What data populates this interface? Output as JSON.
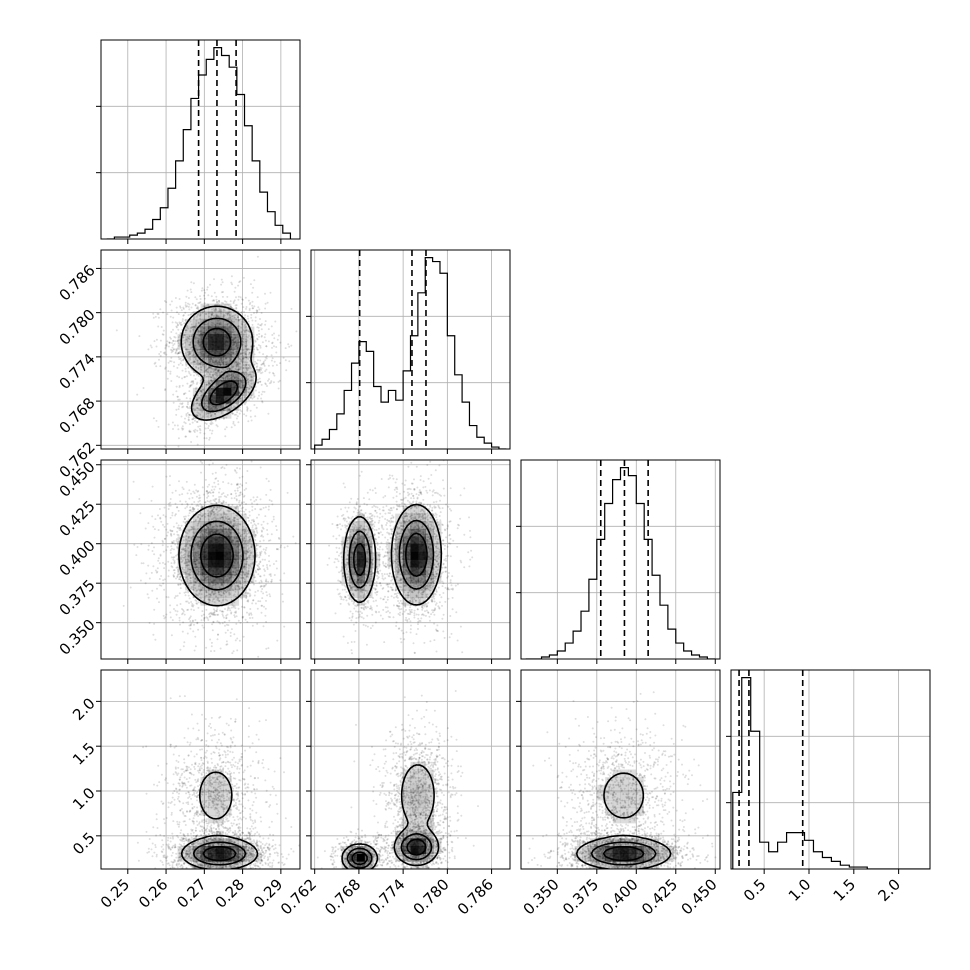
{
  "chart_data": {
    "type": "scatter",
    "title": "",
    "layout": "corner",
    "parameters": [
      {
        "name": "",
        "range": [
          0.243,
          0.295
        ],
        "ticks": [
          0.25,
          0.26,
          0.27,
          0.28,
          0.29
        ]
      },
      {
        "name": "",
        "range": [
          0.7615,
          0.7885
        ],
        "ticks": [
          0.762,
          0.768,
          0.774,
          0.78,
          0.786
        ]
      },
      {
        "name": "",
        "range": [
          0.327,
          0.453
        ],
        "ticks": [
          0.35,
          0.375,
          0.4,
          0.425,
          0.45
        ]
      },
      {
        "name": "",
        "range": [
          0.13,
          2.35
        ],
        "ticks": [
          0.5,
          1.0,
          1.5,
          2.0
        ]
      }
    ],
    "tick_labels": {
      "p0": [
        "0.25",
        "0.26",
        "0.27",
        "0.28",
        "0.29"
      ],
      "p1": [
        "0.762",
        "0.768",
        "0.774",
        "0.780",
        "0.786"
      ],
      "p2": [
        "0.350",
        "0.375",
        "0.400",
        "0.425",
        "0.450"
      ],
      "p3": [
        "0.5",
        "1.0",
        "1.5",
        "2.0"
      ]
    },
    "grid": true,
    "histograms": [
      {
        "param": 0,
        "quantiles": [
          0.2685,
          0.2733,
          0.2783
        ],
        "bin_edges": [
          0.2445,
          0.2465,
          0.2485,
          0.2505,
          0.2525,
          0.2545,
          0.2565,
          0.2585,
          0.2605,
          0.2625,
          0.2645,
          0.2665,
          0.2685,
          0.2705,
          0.2725,
          0.2745,
          0.2765,
          0.2785,
          0.2805,
          0.2825,
          0.2845,
          0.2865,
          0.2885,
          0.2905,
          0.2925
        ],
        "counts": [
          0,
          1,
          1,
          2,
          3,
          5,
          10,
          16,
          26,
          40,
          56,
          72,
          84,
          92,
          98,
          94,
          88,
          74,
          58,
          40,
          24,
          14,
          7,
          3
        ]
      },
      {
        "param": 1,
        "quantiles": [
          0.7681,
          0.7752,
          0.7771
        ],
        "bin_edges": [
          0.762,
          0.763,
          0.764,
          0.765,
          0.766,
          0.767,
          0.768,
          0.769,
          0.77,
          0.771,
          0.772,
          0.773,
          0.774,
          0.775,
          0.776,
          0.777,
          0.778,
          0.779,
          0.78,
          0.781,
          0.782,
          0.783,
          0.784,
          0.785,
          0.786,
          0.787,
          0.788
        ],
        "counts": [
          2,
          5,
          10,
          18,
          30,
          44,
          55,
          50,
          32,
          24,
          30,
          25,
          40,
          58,
          80,
          98,
          96,
          90,
          58,
          38,
          24,
          12,
          6,
          3,
          1,
          0
        ]
      },
      {
        "param": 2,
        "quantiles": [
          0.3775,
          0.3925,
          0.4075
        ],
        "bin_edges": [
          0.33,
          0.335,
          0.34,
          0.345,
          0.35,
          0.355,
          0.36,
          0.365,
          0.37,
          0.375,
          0.38,
          0.385,
          0.39,
          0.395,
          0.4,
          0.405,
          0.41,
          0.415,
          0.42,
          0.425,
          0.43,
          0.435,
          0.44,
          0.445,
          0.45
        ],
        "counts": [
          0,
          0,
          1,
          2,
          4,
          8,
          14,
          24,
          40,
          60,
          78,
          90,
          96,
          92,
          78,
          60,
          42,
          27,
          15,
          8,
          4,
          2,
          1,
          0
        ]
      },
      {
        "param": 3,
        "quantiles": [
          0.22,
          0.33,
          0.93
        ],
        "bin_edges": [
          0.15,
          0.25,
          0.35,
          0.45,
          0.55,
          0.65,
          0.75,
          0.85,
          0.95,
          1.05,
          1.15,
          1.25,
          1.35,
          1.45,
          1.55,
          1.65,
          1.75,
          1.85,
          1.95,
          2.05,
          2.15,
          2.25,
          2.35
        ],
        "counts": [
          40,
          100,
          72,
          14,
          9,
          14,
          19,
          19,
          15,
          9,
          6,
          4,
          2,
          1,
          1,
          0,
          0,
          0,
          0,
          0,
          0,
          0
        ]
      }
    ],
    "pair_panels": [
      {
        "x_param": 0,
        "y_param": 1,
        "clusters": [
          {
            "center": [
              0.2733,
              0.776
            ],
            "sd": [
              0.0048,
              0.0025
            ],
            "weight": 0.64
          },
          {
            "center": [
              0.275,
              0.769
            ],
            "sd": [
              0.0042,
              0.0018
            ],
            "rho": 0.55,
            "weight": 0.36
          }
        ],
        "contour_levels": 3
      },
      {
        "x_param": 0,
        "y_param": 2,
        "clusters": [
          {
            "center": [
              0.2733,
              0.3925
            ],
            "sd": [
              0.005,
              0.016
            ],
            "weight": 1.0
          }
        ],
        "contour_levels": 3
      },
      {
        "x_param": 1,
        "y_param": 2,
        "clusters": [
          {
            "center": [
              0.7681,
              0.39
            ],
            "sd": [
              0.0011,
              0.014
            ],
            "weight": 0.34
          },
          {
            "center": [
              0.7758,
              0.393
            ],
            "sd": [
              0.0017,
              0.016
            ],
            "weight": 0.66
          }
        ],
        "contour_levels": 3
      },
      {
        "x_param": 0,
        "y_param": 3,
        "clusters": [
          {
            "center": [
              0.274,
              0.3
            ],
            "sd": [
              0.005,
              0.09
            ],
            "weight": 0.62
          },
          {
            "center": [
              0.273,
              0.95
            ],
            "sd": [
              0.0045,
              0.28
            ],
            "weight": 0.38
          }
        ],
        "contour_levels": 3
      },
      {
        "x_param": 1,
        "y_param": 3,
        "clusters": [
          {
            "center": [
              0.7681,
              0.25
            ],
            "sd": [
              0.0012,
              0.08
            ],
            "weight": 0.25
          },
          {
            "center": [
              0.7758,
              0.37
            ],
            "sd": [
              0.0015,
              0.1
            ],
            "weight": 0.37
          },
          {
            "center": [
              0.776,
              0.95
            ],
            "sd": [
              0.0018,
              0.28
            ],
            "weight": 0.38
          }
        ],
        "contour_levels": 3
      },
      {
        "x_param": 2,
        "y_param": 3,
        "clusters": [
          {
            "center": [
              0.392,
              0.3
            ],
            "sd": [
              0.015,
              0.09
            ],
            "weight": 0.62
          },
          {
            "center": [
              0.392,
              0.95
            ],
            "sd": [
              0.014,
              0.28
            ],
            "weight": 0.38
          }
        ],
        "contour_levels": 3
      }
    ]
  }
}
